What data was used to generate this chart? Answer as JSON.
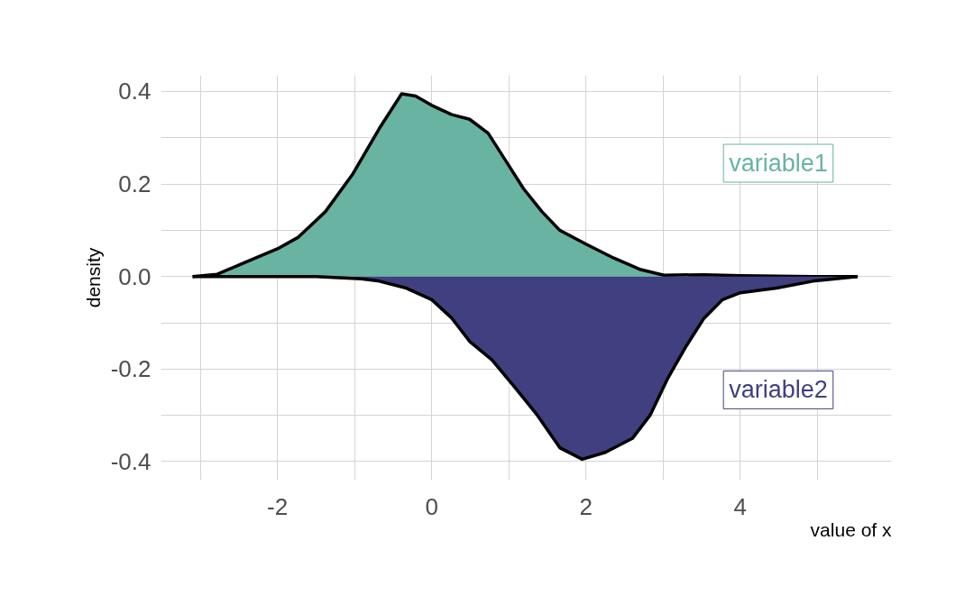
{
  "chart_data": {
    "type": "area",
    "xlabel": "value of x",
    "ylabel": "density",
    "xlim": [
      -3.51,
      5.96
    ],
    "ylim": [
      -0.44,
      0.435
    ],
    "xticks": [
      {
        "value": -3,
        "label": null
      },
      -2,
      {
        "value": -1,
        "label": null
      },
      0,
      {
        "value": 1,
        "label": null
      },
      2,
      {
        "value": 3,
        "label": null
      },
      4,
      {
        "value": 5,
        "label": null
      }
    ],
    "yticks": [
      -0.4,
      {
        "value": -0.3,
        "label": null
      },
      -0.2,
      {
        "value": -0.1,
        "label": null
      },
      {
        "value": 0.0,
        "label": "0.0"
      },
      {
        "value": 0.1,
        "label": null
      },
      0.2,
      {
        "value": 0.3,
        "label": null
      },
      0.4
    ],
    "grid": true,
    "legend": false,
    "line_style": "solid",
    "series": [
      {
        "name": "variable1",
        "color": "#69b3a2",
        "x": [
          -3.1,
          -2.78,
          -2.43,
          -2.0,
          -1.73,
          -1.38,
          -1.03,
          -0.68,
          -0.39,
          -0.21,
          0.0,
          0.26,
          0.49,
          0.73,
          0.96,
          1.19,
          1.43,
          1.66,
          2.0,
          2.36,
          2.71,
          3.01,
          3.53,
          4.0,
          4.94,
          5.52
        ],
        "values": [
          0.0,
          0.005,
          0.03,
          0.06,
          0.085,
          0.14,
          0.22,
          0.32,
          0.395,
          0.39,
          0.37,
          0.35,
          0.34,
          0.31,
          0.25,
          0.19,
          0.14,
          0.1,
          0.07,
          0.04,
          0.015,
          0.003,
          0.004,
          0.002,
          0.0,
          0.0
        ]
      },
      {
        "name": "variable2",
        "color": "#404080",
        "x": [
          -3.1,
          -1.5,
          -0.91,
          -0.68,
          -0.33,
          0.0,
          0.26,
          0.49,
          0.78,
          1.08,
          1.37,
          1.66,
          1.95,
          2.25,
          2.6,
          2.83,
          3.06,
          3.3,
          3.53,
          3.77,
          4.0,
          4.47,
          4.94,
          5.52
        ],
        "values": [
          0.0,
          0.0,
          -0.005,
          -0.01,
          -0.025,
          -0.05,
          -0.09,
          -0.14,
          -0.18,
          -0.24,
          -0.3,
          -0.37,
          -0.395,
          -0.38,
          -0.35,
          -0.3,
          -0.22,
          -0.15,
          -0.09,
          -0.05,
          -0.035,
          -0.025,
          -0.01,
          0.0
        ]
      }
    ]
  }
}
